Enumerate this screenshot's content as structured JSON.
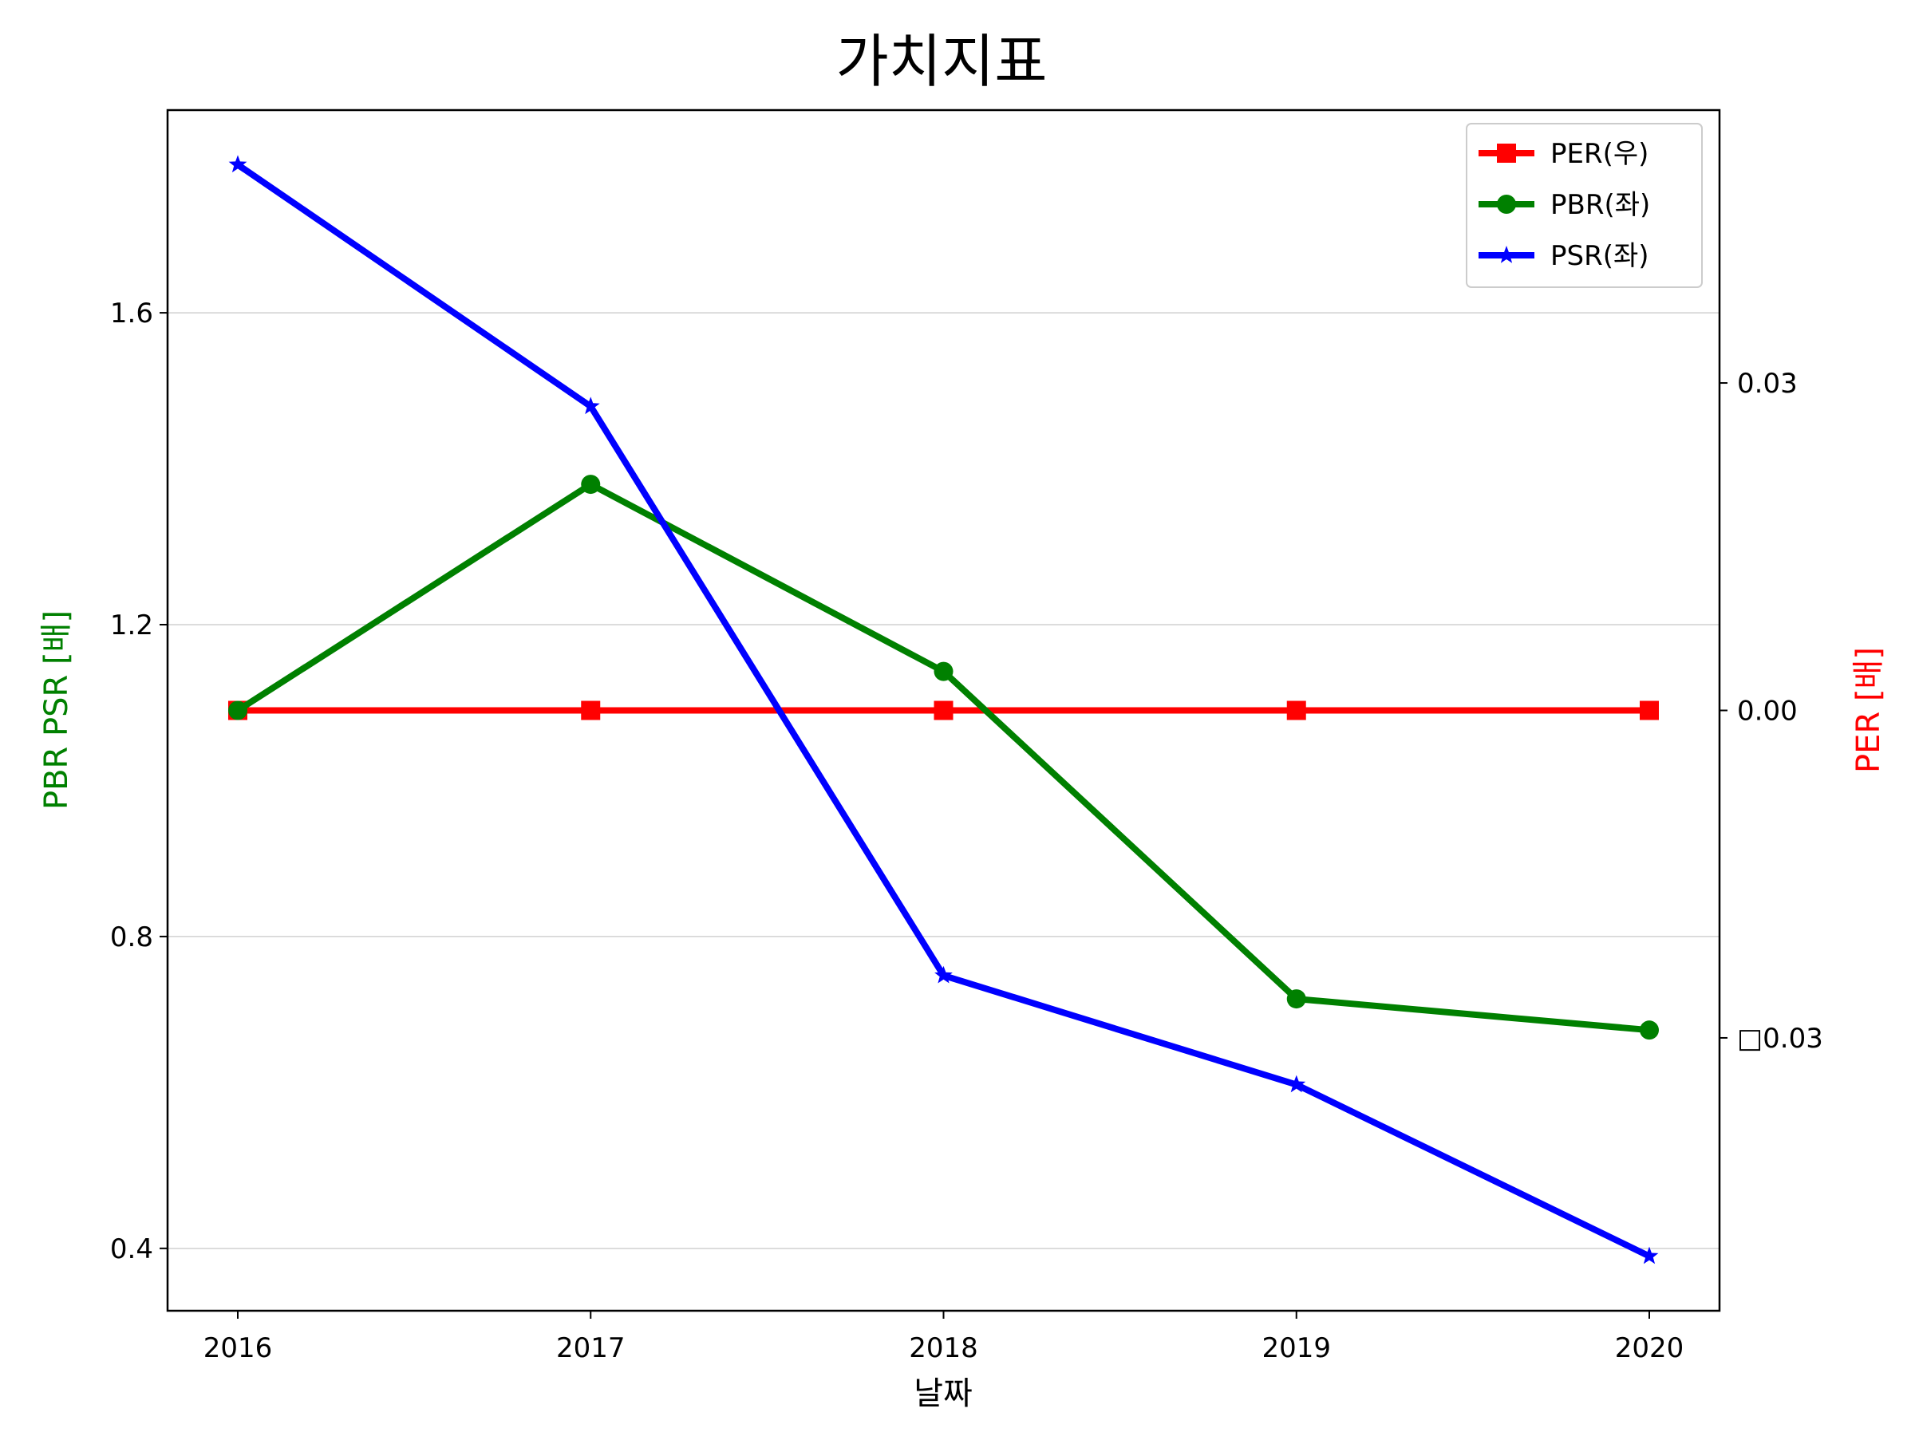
{
  "chart_data": {
    "type": "line",
    "title": "가치지표",
    "xlabel": "날짜",
    "ylabel_left": "PBR PSR [배]",
    "ylabel_right": "PER [배]",
    "categories": [
      "2016",
      "2017",
      "2018",
      "2019",
      "2020"
    ],
    "left_axis": {
      "ylim": [
        0.32,
        1.86
      ],
      "ticks": [
        0.4,
        0.8,
        1.2,
        1.6
      ],
      "tick_labels": [
        "0.4",
        "0.8",
        "1.2",
        "1.6"
      ],
      "grid": true
    },
    "right_axis": {
      "ylim": [
        -0.055,
        0.055
      ],
      "ticks": [
        -0.03,
        0.0,
        0.03
      ],
      "tick_labels": [
        "□0.03",
        "0.00",
        "0.03"
      ],
      "grid": false
    },
    "series": [
      {
        "name": "PER(우)",
        "axis": "right",
        "color": "#ff0000",
        "marker": "square",
        "values": [
          0,
          0,
          0,
          0,
          0
        ]
      },
      {
        "name": "PBR(좌)",
        "axis": "left",
        "color": "#008000",
        "marker": "circle",
        "values": [
          1.09,
          1.38,
          1.14,
          0.72,
          0.68
        ]
      },
      {
        "name": "PSR(좌)",
        "axis": "left",
        "color": "#0000ff",
        "marker": "star",
        "values": [
          1.79,
          1.48,
          0.75,
          0.61,
          0.39
        ]
      }
    ],
    "legend": {
      "position": "top-right"
    }
  }
}
